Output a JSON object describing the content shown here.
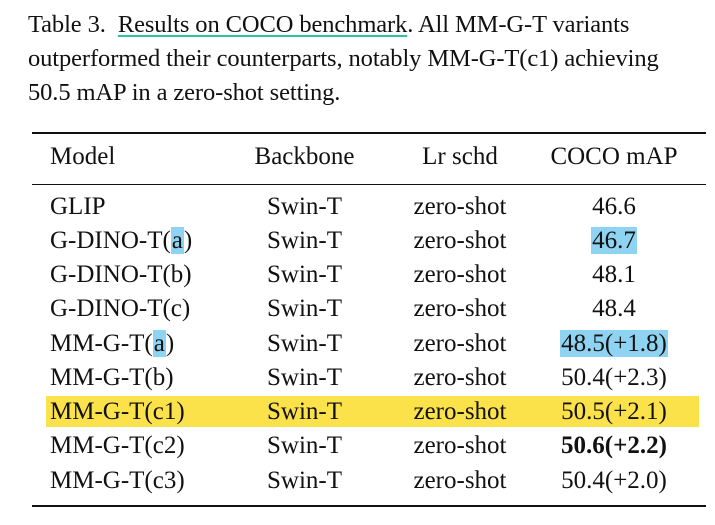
{
  "caption": {
    "label": "Table 3.",
    "title": "Results on COCO benchmark",
    "text_line1_rest": ".  All MM-G-T variants",
    "text_line2": "outperformed their counterparts, notably MM-G-T(c1) achieving",
    "text_line3": "50.5 mAP in a zero-shot setting."
  },
  "table": {
    "headers": [
      "Model",
      "Backbone",
      "Lr schd",
      "COCO mAP"
    ],
    "rows": [
      {
        "model_base": "GLIP",
        "model_paren": "",
        "backbone": "Swin-T",
        "lr": "zero-shot",
        "map": "46.6"
      },
      {
        "model_base": "G-DINO-T(",
        "model_paren": "a",
        "model_close": ")",
        "backbone": "Swin-T",
        "lr": "zero-shot",
        "map": "46.7"
      },
      {
        "model_base": "G-DINO-T(b)",
        "model_paren": "",
        "backbone": "Swin-T",
        "lr": "zero-shot",
        "map": "48.1"
      },
      {
        "model_base": "G-DINO-T(c)",
        "model_paren": "",
        "backbone": "Swin-T",
        "lr": "zero-shot",
        "map": "48.4"
      },
      {
        "model_base": "MM-G-T(",
        "model_paren": "a",
        "model_close": ")",
        "backbone": "Swin-T",
        "lr": "zero-shot",
        "map": "48.5(+1.8)"
      },
      {
        "model_base": "MM-G-T(b)",
        "model_paren": "",
        "backbone": "Swin-T",
        "lr": "zero-shot",
        "map": "50.4(+2.3)"
      },
      {
        "model_base": "MM-G-T(c1)",
        "model_paren": "",
        "backbone": "Swin-T",
        "lr": "zero-shot",
        "map": "50.5(+2.1)"
      },
      {
        "model_base": "MM-G-T(c2)",
        "model_paren": "",
        "backbone": "Swin-T",
        "lr": "zero-shot",
        "map": "50.6(+2.2)"
      },
      {
        "model_base": "MM-G-T(c3)",
        "model_paren": "",
        "backbone": "Swin-T",
        "lr": "zero-shot",
        "map": "50.4(+2.0)"
      }
    ]
  },
  "highlight_colors": {
    "blue": "#8fd3f2",
    "yellow": "#fbe14a",
    "underline": "#2ec4a0"
  }
}
